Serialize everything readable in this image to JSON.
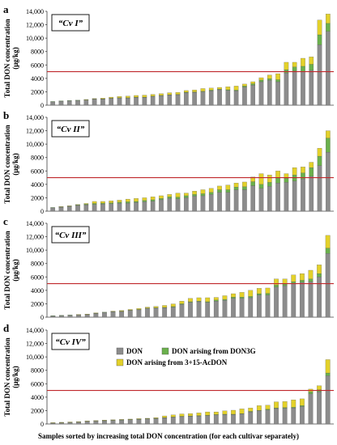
{
  "figure": {
    "xlabel": "Samples sorted by increasing total DON concentration (for each cultivar separately)"
  },
  "legend": {
    "don": "DON",
    "don3g": "DON arising from DON3G",
    "acdon": "DON arising from 3+15-AcDON"
  },
  "colors": {
    "don": "#8c8c8c",
    "don3g": "#6ab04c",
    "acdon": "#e3d12a",
    "threshold": "#c0282c",
    "axis": "#404040",
    "border": "#000000"
  },
  "chart_data": [
    {
      "type": "bar",
      "stacked": true,
      "panel_letter": "a",
      "cultivar_label": "“Cv I”",
      "ylabel": "Total DON concentration",
      "yunit": "(μg/kg)",
      "ylim": [
        0,
        14000
      ],
      "yticks": [
        "0",
        "2000",
        "4000",
        "6000",
        "8000",
        "10,000",
        "12,000",
        "14,000"
      ],
      "threshold": 5000,
      "series": [
        {
          "key": "don",
          "values": [
            500,
            600,
            650,
            700,
            750,
            900,
            900,
            1000,
            1050,
            1050,
            1150,
            1150,
            1300,
            1400,
            1500,
            1550,
            1850,
            1900,
            2000,
            2150,
            2300,
            2200,
            2150,
            2700,
            3000,
            3500,
            3700,
            3500,
            4800,
            5100,
            5000,
            5200,
            9000,
            11000
          ]
        },
        {
          "key": "don3g",
          "values": [
            50,
            50,
            50,
            50,
            50,
            50,
            50,
            50,
            50,
            50,
            50,
            50,
            60,
            60,
            60,
            60,
            80,
            80,
            80,
            100,
            100,
            100,
            100,
            150,
            200,
            250,
            250,
            300,
            500,
            600,
            800,
            900,
            1500,
            1200
          ]
        },
        {
          "key": "acdon",
          "values": [
            0,
            0,
            0,
            0,
            50,
            50,
            100,
            150,
            200,
            250,
            250,
            300,
            250,
            250,
            300,
            300,
            250,
            300,
            400,
            300,
            250,
            450,
            600,
            300,
            300,
            350,
            550,
            900,
            1100,
            700,
            1200,
            1100,
            2200,
            1400
          ]
        }
      ]
    },
    {
      "type": "bar",
      "stacked": true,
      "panel_letter": "b",
      "cultivar_label": "“Cv II”",
      "ylabel": "Total DON concentration",
      "yunit": "(μg/kg)",
      "ylim": [
        0,
        14000
      ],
      "yticks": [
        "0",
        "2000",
        "4000",
        "6000",
        "8000",
        "10,000",
        "12,000",
        "14,000"
      ],
      "threshold": 5000,
      "series": [
        {
          "key": "don",
          "values": [
            500,
            600,
            700,
            850,
            950,
            1000,
            1050,
            1100,
            1200,
            1200,
            1300,
            1400,
            1500,
            1700,
            1900,
            1850,
            2000,
            2250,
            2300,
            2500,
            2800,
            2800,
            3200,
            3200,
            3800,
            3400,
            3700,
            4200,
            4300,
            4500,
            4800,
            5200,
            6800,
            8800
          ]
        },
        {
          "key": "don3g",
          "values": [
            50,
            50,
            50,
            100,
            100,
            150,
            150,
            150,
            150,
            200,
            150,
            200,
            200,
            200,
            250,
            250,
            300,
            250,
            300,
            300,
            400,
            400,
            400,
            450,
            600,
            600,
            600,
            800,
            600,
            900,
            900,
            1300,
            1400,
            2100
          ]
        },
        {
          "key": "acdon",
          "values": [
            0,
            50,
            50,
            50,
            100,
            300,
            250,
            300,
            300,
            400,
            450,
            400,
            450,
            400,
            350,
            600,
            400,
            500,
            600,
            600,
            550,
            700,
            600,
            700,
            700,
            1600,
            1100,
            1000,
            700,
            1100,
            900,
            800,
            1200,
            1100
          ]
        }
      ]
    },
    {
      "type": "bar",
      "stacked": true,
      "panel_letter": "c",
      "cultivar_label": "“Cv III”",
      "ylabel": "Total DON concentration",
      "yunit": "(μg/kg)",
      "ylim": [
        0,
        14000
      ],
      "yticks": [
        "0",
        "2000",
        "4000",
        "6000",
        "8000",
        "10,000",
        "12,000",
        "14,000"
      ],
      "threshold": 5000,
      "series": [
        {
          "key": "don",
          "values": [
            200,
            250,
            300,
            350,
            400,
            550,
            700,
            800,
            850,
            1000,
            1100,
            1300,
            1350,
            1400,
            1500,
            1900,
            2200,
            2300,
            2200,
            2400,
            2500,
            2800,
            2800,
            2900,
            3300,
            3300,
            4500,
            4700,
            5000,
            5200,
            5300,
            6000,
            9500
          ]
        },
        {
          "key": "don3g",
          "values": [
            20,
            20,
            20,
            30,
            30,
            50,
            50,
            50,
            50,
            50,
            50,
            50,
            50,
            50,
            80,
            100,
            100,
            100,
            100,
            150,
            150,
            200,
            200,
            200,
            200,
            250,
            300,
            300,
            300,
            300,
            400,
            500,
            800
          ]
        },
        {
          "key": "acdon",
          "values": [
            0,
            0,
            0,
            20,
            30,
            50,
            0,
            50,
            100,
            100,
            150,
            150,
            200,
            300,
            400,
            400,
            500,
            500,
            600,
            400,
            550,
            500,
            700,
            900,
            800,
            800,
            900,
            700,
            1000,
            1000,
            1300,
            1300,
            1900
          ]
        }
      ]
    },
    {
      "type": "bar",
      "stacked": true,
      "panel_letter": "d",
      "cultivar_label": "“Cv IV”",
      "ylabel": "Total DON concentration",
      "yunit": "(μg/kg)",
      "ylim": [
        0,
        14000
      ],
      "yticks": [
        "0",
        "2000",
        "4000",
        "6000",
        "8000",
        "10,000",
        "12,000",
        "14,000"
      ],
      "threshold": 5000,
      "series": [
        {
          "key": "don",
          "values": [
            150,
            200,
            250,
            300,
            400,
            450,
            500,
            550,
            600,
            650,
            700,
            750,
            800,
            900,
            1000,
            1100,
            1150,
            1200,
            1250,
            1350,
            1400,
            1400,
            1500,
            1800,
            1950,
            2100,
            2300,
            2350,
            2400,
            2600,
            4500,
            4800,
            7200
          ]
        },
        {
          "key": "don3g",
          "values": [
            20,
            20,
            20,
            20,
            30,
            30,
            30,
            30,
            30,
            30,
            30,
            50,
            50,
            50,
            50,
            50,
            50,
            50,
            50,
            50,
            50,
            50,
            50,
            80,
            80,
            100,
            100,
            100,
            100,
            150,
            300,
            300,
            400
          ]
        },
        {
          "key": "acdon",
          "values": [
            30,
            30,
            30,
            30,
            20,
            30,
            50,
            50,
            50,
            50,
            70,
            50,
            100,
            250,
            300,
            350,
            350,
            400,
            500,
            400,
            500,
            600,
            700,
            500,
            700,
            600,
            900,
            900,
            1100,
            1000,
            400,
            600,
            2000
          ]
        }
      ]
    }
  ]
}
